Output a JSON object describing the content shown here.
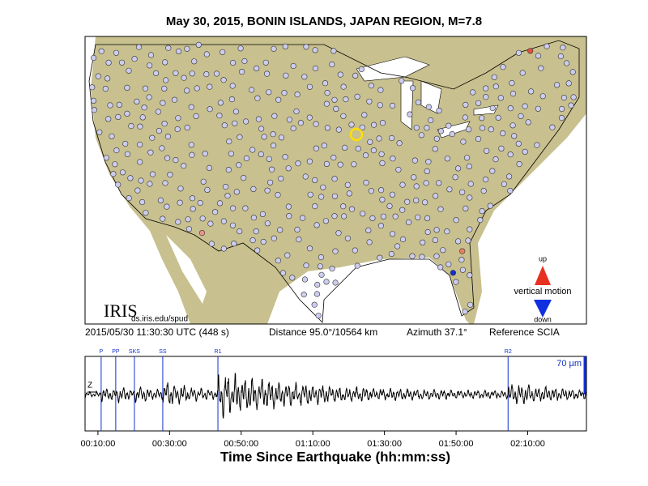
{
  "header": {
    "title": "May 30, 2015, BONIN ISLANDS, JAPAN REGION, M=7.8"
  },
  "map": {
    "logo": "IRIS",
    "credit": "ds.iris.edu/spud",
    "legend": {
      "up": "up",
      "label": "vertical motion",
      "down": "down"
    }
  },
  "info": {
    "time": "2015/05/30 11:30:30 UTC (448 s)",
    "distance": "Distance  95.0°/10564 km",
    "azimuth": "Azimuth  37.1°",
    "reference": "Reference SCIA"
  },
  "seismogram": {
    "channel": "Z",
    "scale": "70 µm",
    "xlim": [
      384,
      8784
    ],
    "xticks": [
      {
        "value": 600,
        "label": "00:10:00"
      },
      {
        "value": 1800,
        "label": "00:30:00"
      },
      {
        "value": 3000,
        "label": "00:50:00"
      },
      {
        "value": 4200,
        "label": "01:10:00"
      },
      {
        "value": 5400,
        "label": "01:30:00"
      },
      {
        "value": 6600,
        "label": "01:50:00"
      },
      {
        "value": 7800,
        "label": "02:10:00"
      }
    ],
    "phases": [
      {
        "name": "P",
        "time": 654
      },
      {
        "name": "PP",
        "time": 898
      },
      {
        "name": "SKS",
        "time": 1211
      },
      {
        "name": "SS",
        "time": 1686
      },
      {
        "name": "R1",
        "time": 2610
      },
      {
        "name": "R2",
        "time": 7471
      }
    ],
    "xlabel": "Time Since Earthquake (hh:mm:ss)"
  }
}
